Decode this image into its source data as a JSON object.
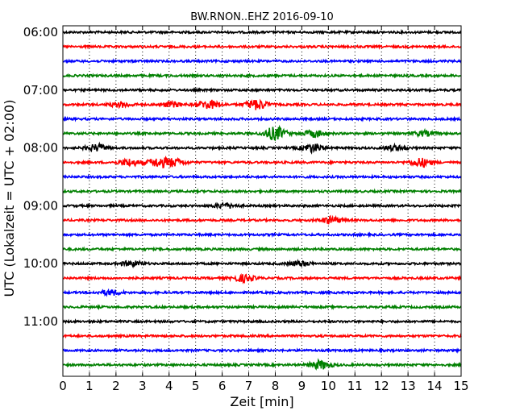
{
  "chart_data": {
    "type": "line",
    "title": "BW.RNON..EHZ 2016-09-10",
    "xlabel": "Zeit  [min]",
    "ylabel": "UTC (Lokalzeit = UTC + 02:00)",
    "xlim": [
      0,
      15
    ],
    "x_ticks": [
      "0",
      "1",
      "2",
      "3",
      "4",
      "5",
      "6",
      "7",
      "8",
      "9",
      "10",
      "11",
      "12",
      "13",
      "14",
      "15"
    ],
    "y_tick_labels": [
      "06:00",
      "07:00",
      "08:00",
      "09:00",
      "10:00",
      "11:00"
    ],
    "grid": "vertical-dotted",
    "trace_colors": [
      "#000000",
      "#ff0000",
      "#0000ff",
      "#008000"
    ],
    "traces": [
      {
        "start": "06:00",
        "color": "#000000"
      },
      {
        "start": "06:15",
        "color": "#ff0000"
      },
      {
        "start": "06:30",
        "color": "#0000ff"
      },
      {
        "start": "06:45",
        "color": "#008000"
      },
      {
        "start": "07:00",
        "color": "#000000"
      },
      {
        "start": "07:15",
        "color": "#ff0000",
        "events": [
          {
            "t": 2.2,
            "a": 3
          },
          {
            "t": 4.1,
            "a": 3
          },
          {
            "t": 5.5,
            "a": 5
          },
          {
            "t": 7.3,
            "a": 6
          }
        ]
      },
      {
        "start": "07:30",
        "color": "#0000ff"
      },
      {
        "start": "07:45",
        "color": "#008000",
        "events": [
          {
            "t": 8.0,
            "a": 8
          },
          {
            "t": 9.5,
            "a": 4
          },
          {
            "t": 13.6,
            "a": 3
          }
        ]
      },
      {
        "start": "08:00",
        "color": "#000000",
        "events": [
          {
            "t": 1.3,
            "a": 4
          },
          {
            "t": 9.4,
            "a": 5
          },
          {
            "t": 12.5,
            "a": 3
          }
        ]
      },
      {
        "start": "08:15",
        "color": "#ff0000",
        "events": [
          {
            "t": 2.5,
            "a": 4
          },
          {
            "t": 3.6,
            "a": 5
          },
          {
            "t": 4.2,
            "a": 4
          },
          {
            "t": 13.5,
            "a": 5
          }
        ]
      },
      {
        "start": "08:30",
        "color": "#0000ff"
      },
      {
        "start": "08:45",
        "color": "#008000"
      },
      {
        "start": "09:00",
        "color": "#000000",
        "events": [
          {
            "t": 6.1,
            "a": 3
          }
        ]
      },
      {
        "start": "09:15",
        "color": "#ff0000",
        "events": [
          {
            "t": 10.1,
            "a": 4
          }
        ]
      },
      {
        "start": "09:30",
        "color": "#0000ff"
      },
      {
        "start": "09:45",
        "color": "#008000"
      },
      {
        "start": "10:00",
        "color": "#000000",
        "events": [
          {
            "t": 2.6,
            "a": 3
          },
          {
            "t": 8.9,
            "a": 3
          }
        ]
      },
      {
        "start": "10:15",
        "color": "#ff0000",
        "events": [
          {
            "t": 6.8,
            "a": 4
          }
        ]
      },
      {
        "start": "10:30",
        "color": "#0000ff",
        "events": [
          {
            "t": 1.8,
            "a": 3
          }
        ]
      },
      {
        "start": "10:45",
        "color": "#008000"
      },
      {
        "start": "11:00",
        "color": "#000000"
      },
      {
        "start": "11:15",
        "color": "#ff0000"
      },
      {
        "start": "11:30",
        "color": "#0000ff"
      },
      {
        "start": "11:45",
        "color": "#008000",
        "events": [
          {
            "t": 9.7,
            "a": 5
          }
        ]
      }
    ]
  }
}
